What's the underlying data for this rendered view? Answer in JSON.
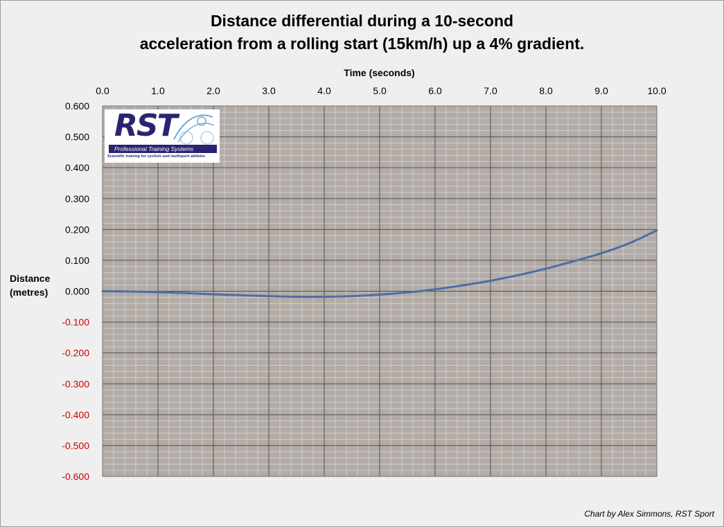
{
  "chart_data": {
    "type": "line",
    "title_lines": [
      "Distance differential during a 10-second",
      "acceleration from a rolling start (15km/h) up a 4% gradient."
    ],
    "xlabel": "Time (seconds)",
    "ylabel_lines": [
      "Distance",
      "(metres)"
    ],
    "x_axis_position": "top",
    "xlim": [
      0,
      10
    ],
    "ylim": [
      -0.6,
      0.6
    ],
    "x_ticks": [
      "0.0",
      "1.0",
      "2.0",
      "3.0",
      "4.0",
      "5.0",
      "6.0",
      "7.0",
      "8.0",
      "9.0",
      "10.0"
    ],
    "y_ticks": [
      "0.600",
      "0.500",
      "0.400",
      "0.300",
      "0.200",
      "0.100",
      "0.000",
      "-0.100",
      "-0.200",
      "-0.300",
      "-0.400",
      "-0.500",
      "-0.600"
    ],
    "grid": true,
    "series": [
      {
        "x": [
          0,
          0.5,
          1,
          1.5,
          2,
          2.5,
          3,
          3.5,
          4,
          4.5,
          5,
          5.5,
          6,
          6.5,
          7,
          7.5,
          8,
          8.5,
          9,
          9.5,
          10
        ],
        "values": [
          0,
          -0.001,
          -0.003,
          -0.006,
          -0.01,
          -0.013,
          -0.016,
          -0.018,
          -0.018,
          -0.016,
          -0.011,
          -0.004,
          0.006,
          0.019,
          0.034,
          0.052,
          0.073,
          0.097,
          0.123,
          0.155,
          0.197
        ]
      }
    ],
    "colors": {
      "line": "#4a6fa5",
      "plot_background": "#b3aba6",
      "grid_major": "#505050",
      "grid_minor": "#cfcfcf",
      "negative_tick_labels": "#cc0000",
      "positive_tick_labels": "#000000"
    }
  },
  "logo": {
    "text": "RST",
    "band": "Professional Training Systems",
    "tagline": "Scientific training for cyclists and multisport athletes"
  },
  "credit": "Chart by Alex Simmons, RST Sport"
}
